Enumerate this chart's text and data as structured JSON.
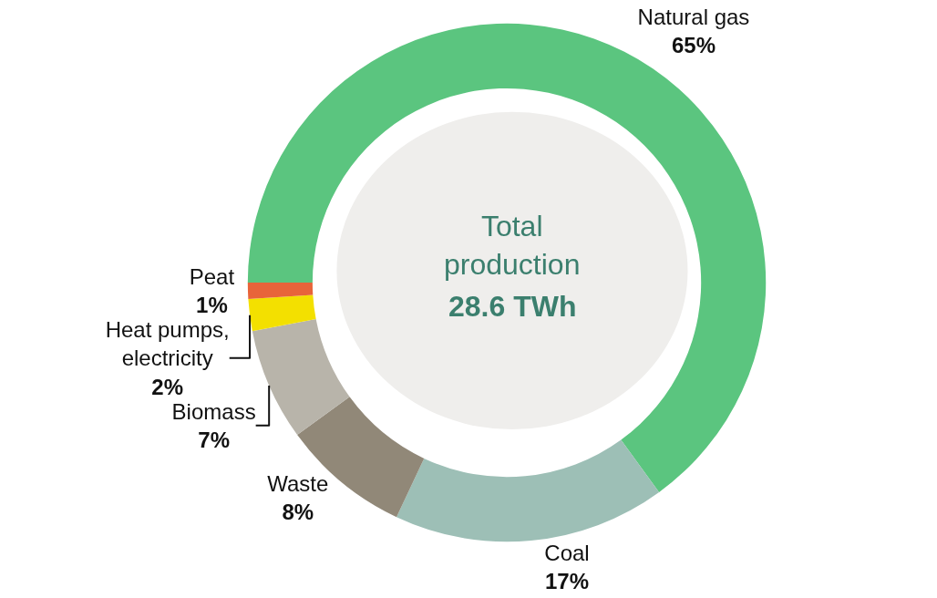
{
  "chart_data": {
    "type": "donut",
    "categories": [
      "Natural gas",
      "Coal",
      "Waste",
      "Biomass",
      "Heat pumps, electricity",
      "Peat"
    ],
    "values": [
      65,
      17,
      8,
      7,
      2,
      1
    ],
    "value_labels": [
      "65%",
      "17%",
      "8%",
      "7%",
      "2%",
      "1%"
    ],
    "colors": [
      "#5bc57f",
      "#9dbfb6",
      "#918878",
      "#b8b4aa",
      "#f3e000",
      "#e8643a"
    ],
    "annotations": [
      "Total production",
      "28.6 TWh"
    ],
    "legend": false
  }
}
